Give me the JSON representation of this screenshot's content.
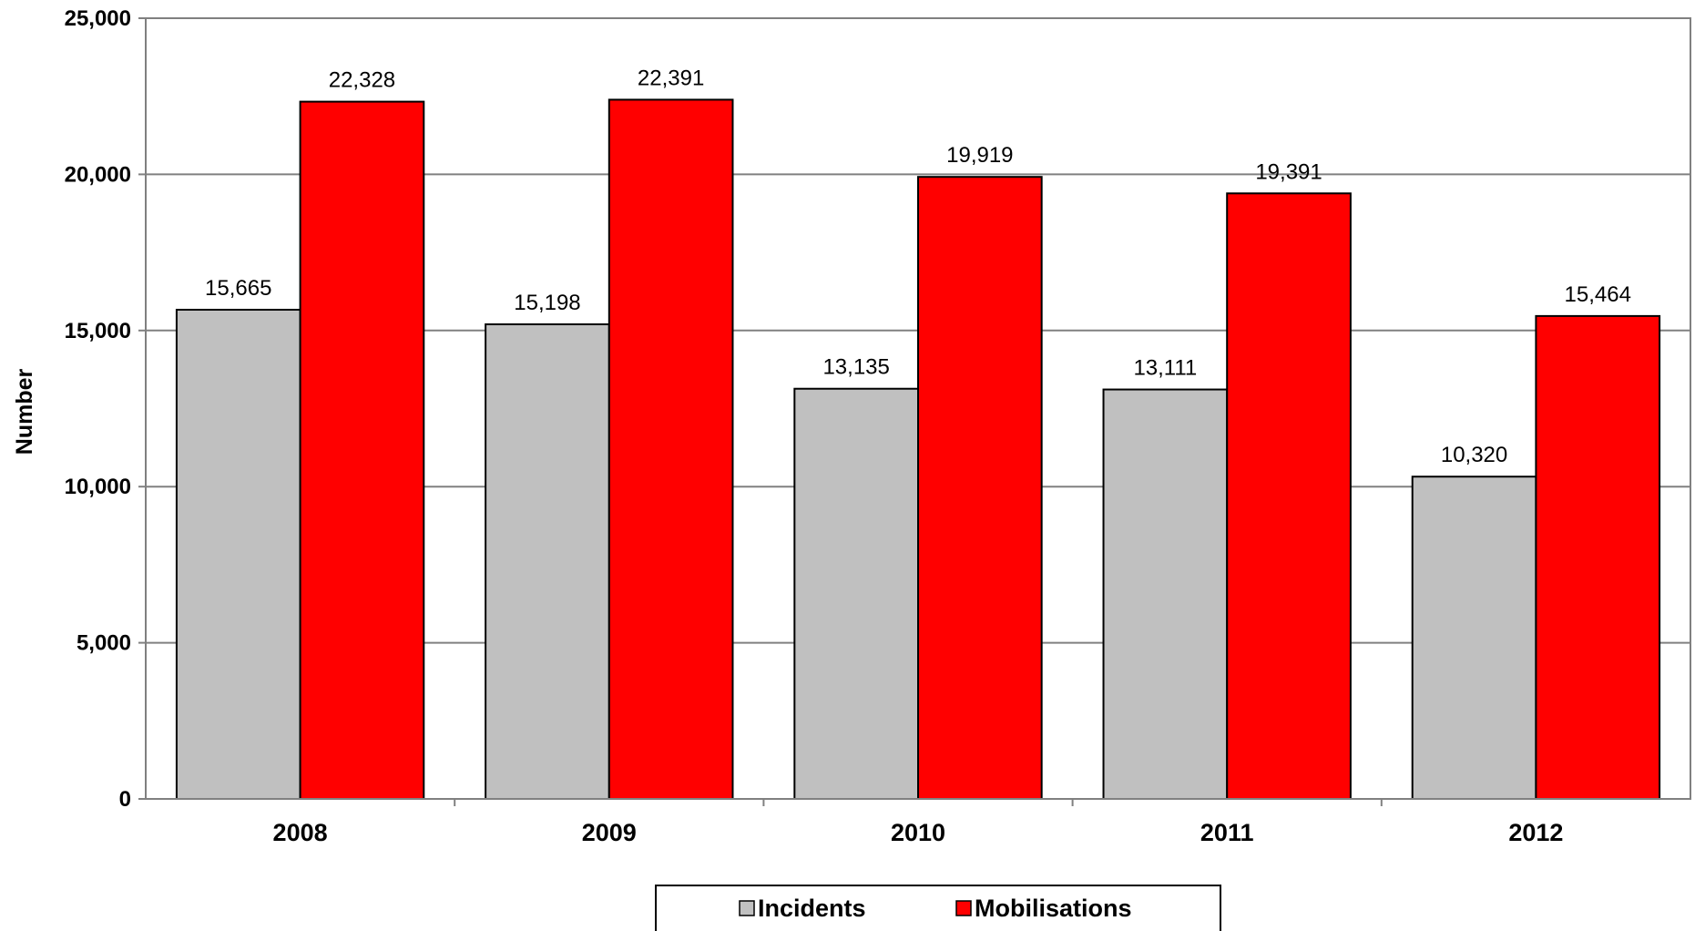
{
  "chart_data": {
    "type": "bar",
    "title": "",
    "xlabel": "",
    "ylabel": "Number",
    "ylim": [
      0,
      25000
    ],
    "yticks": [
      0,
      5000,
      10000,
      15000,
      20000,
      25000
    ],
    "ytick_labels": [
      "0",
      "5,000",
      "10,000",
      "15,000",
      "20,000",
      "25,000"
    ],
    "categories": [
      "2008",
      "2009",
      "2010",
      "2011",
      "2012"
    ],
    "series": [
      {
        "name": "Incidents",
        "color": "#c0c0c0",
        "values": [
          15665,
          15198,
          13135,
          13111,
          10320
        ],
        "labels": [
          "15,665",
          "15,198",
          "13,135",
          "13,111",
          "10,320"
        ]
      },
      {
        "name": "Mobilisations",
        "color": "#ff0000",
        "values": [
          22328,
          22391,
          19919,
          19391,
          15464
        ],
        "labels": [
          "22,328",
          "22,391",
          "19,919",
          "19,391",
          "15,464"
        ]
      }
    ],
    "grid": true,
    "legend": "bottom-center"
  }
}
